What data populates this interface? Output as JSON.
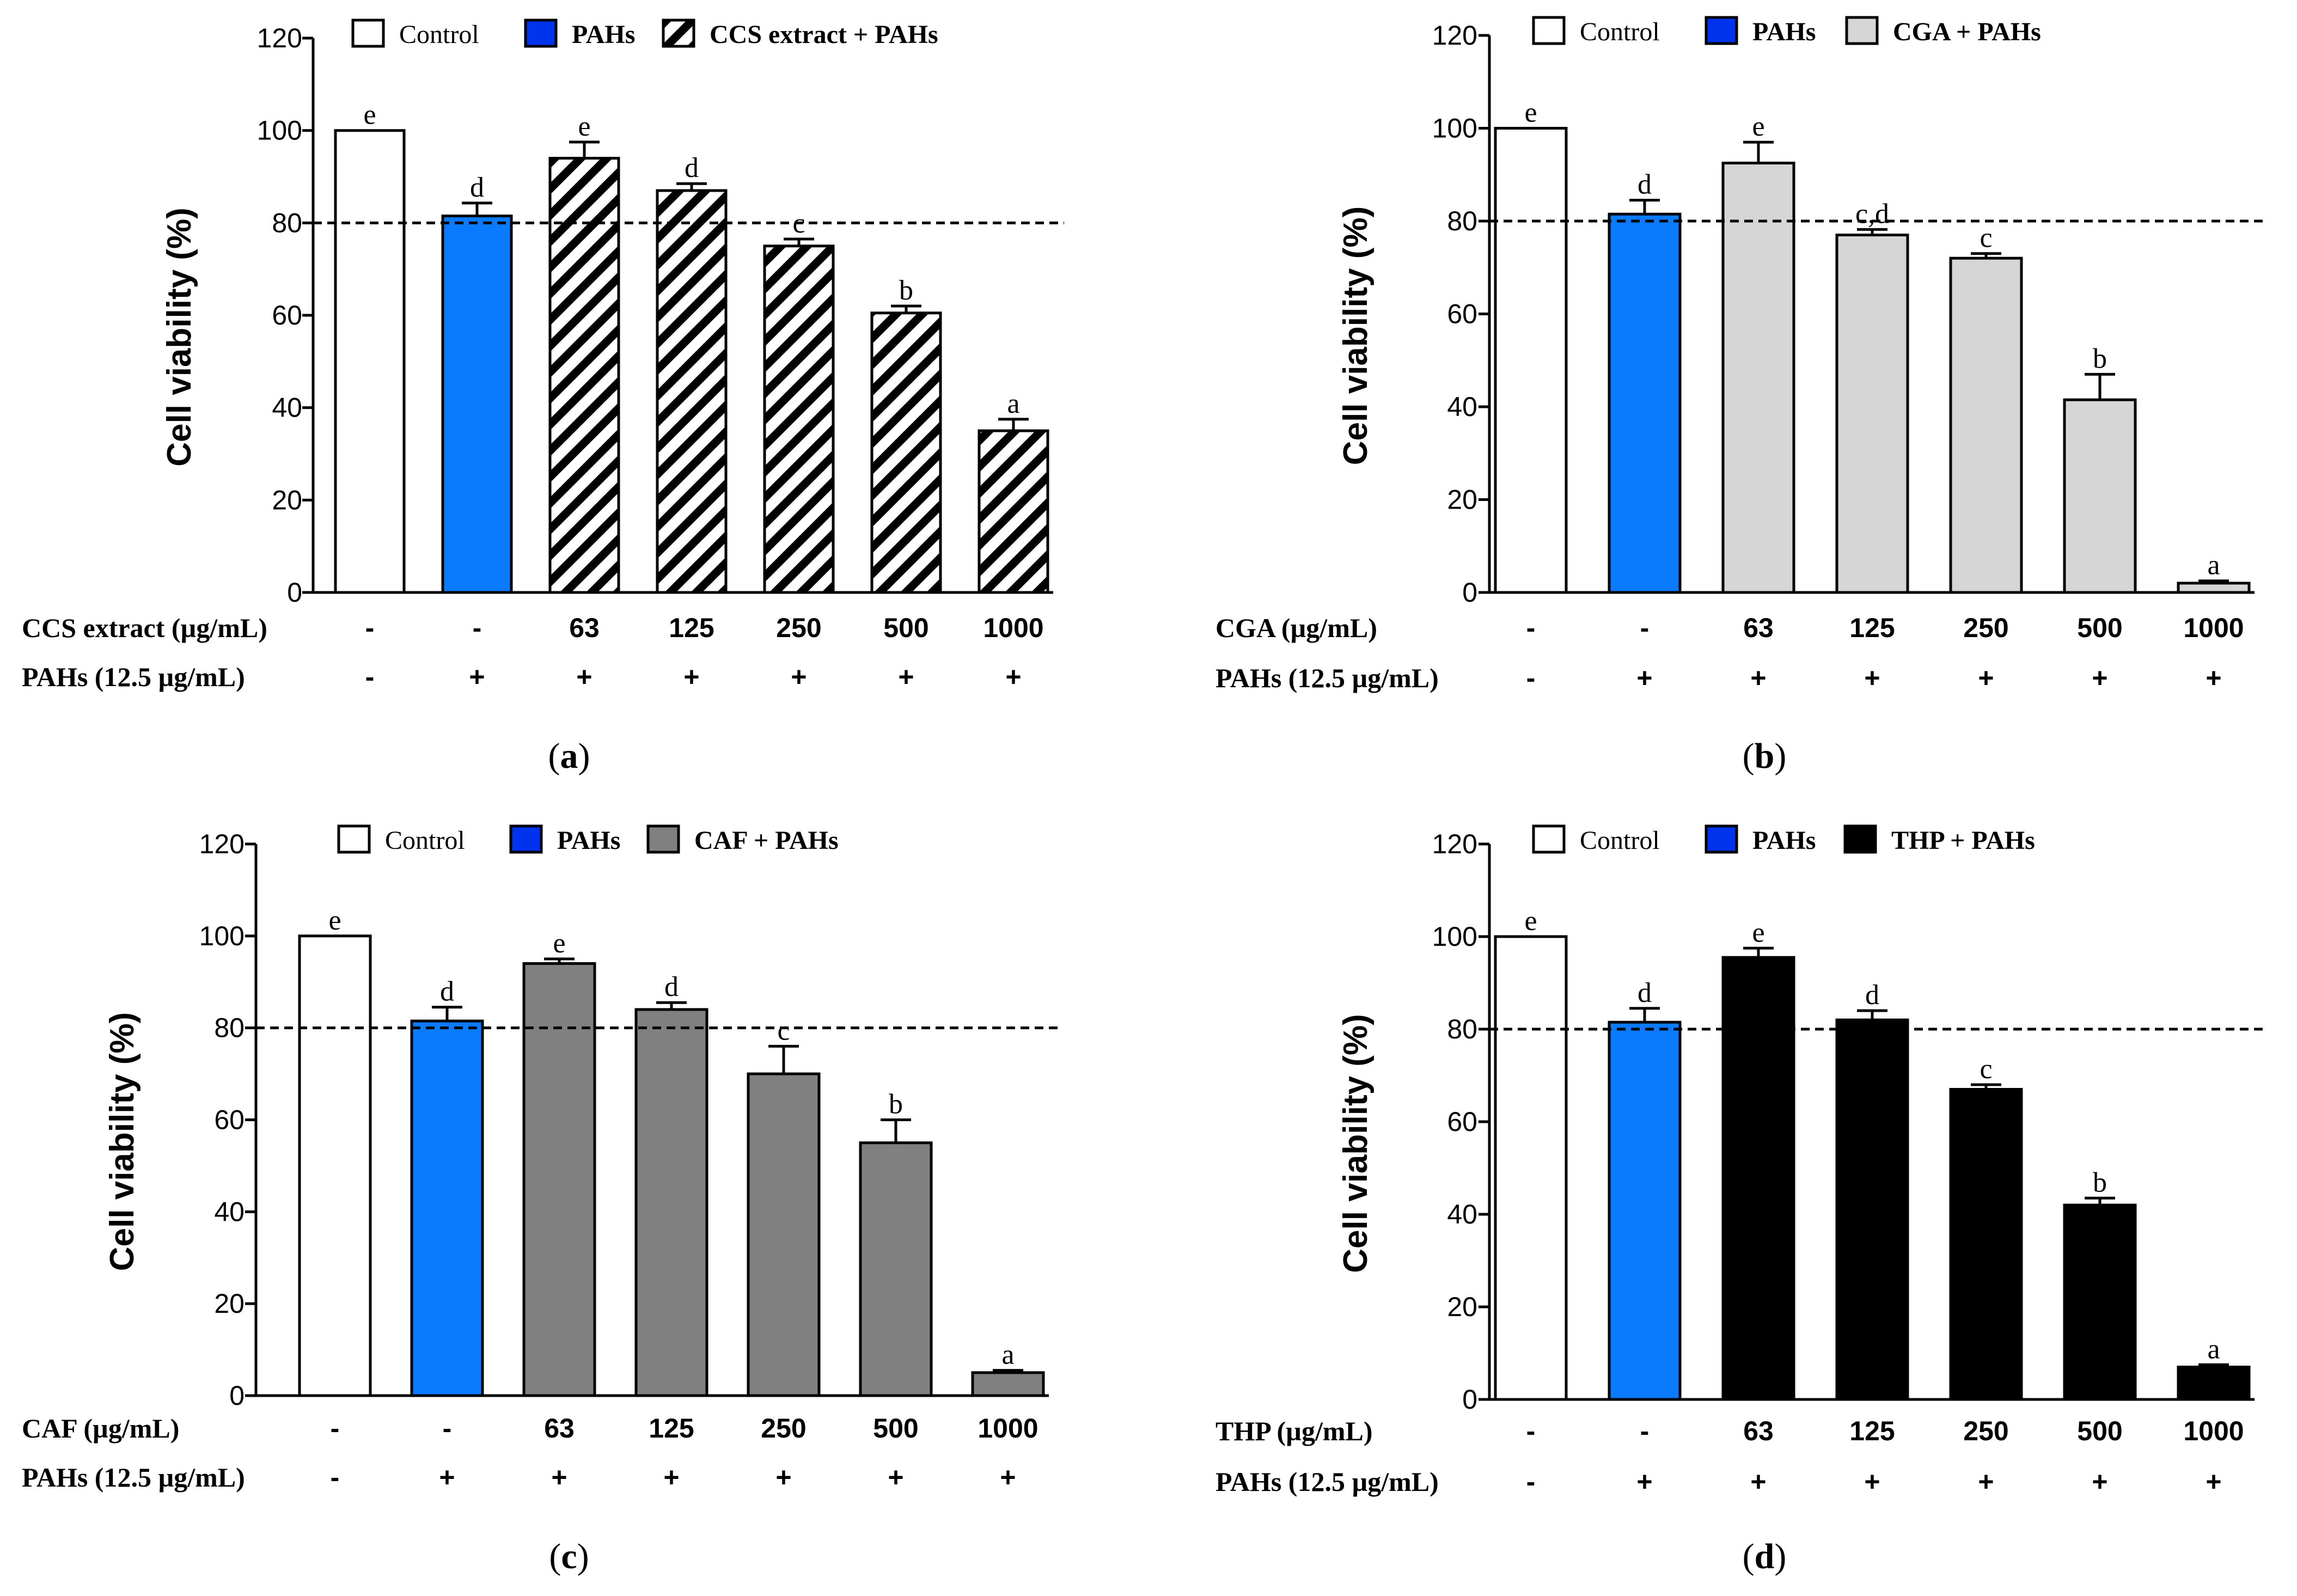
{
  "colors": {
    "control": "#ffffff",
    "pahs_blue": "#0a7bff",
    "legend_pahs": "#0033ee",
    "gray_light": "#d6d6d6",
    "gray_dark": "#808080",
    "black": "#000000"
  },
  "chart_data": [
    {
      "panel": "(a)",
      "caption_letter": "a",
      "type": "bar",
      "fill_style": "hatch",
      "ylabel": "Cell viability (%)",
      "ylim": [
        0,
        120
      ],
      "yticks": [
        "0",
        "20",
        "40",
        "60",
        "80",
        "100",
        "120"
      ],
      "reference_line": 80,
      "legend": [
        "Control",
        "PAHs",
        "CCS extract + PAHs"
      ],
      "row1_label": "CCS extract (µg/mL)",
      "row2_label": "PAHs (12.5 µg/mL)",
      "row1_values": [
        "-",
        "-",
        "63",
        "125",
        "250",
        "500",
        "1000"
      ],
      "row2_values": [
        "-",
        "+",
        "+",
        "+",
        "+",
        "+",
        "+"
      ],
      "values": [
        100,
        81.5,
        94,
        87,
        75,
        60.5,
        35
      ],
      "errors": [
        0,
        2.8,
        3.5,
        1.5,
        1.5,
        1.5,
        2.5
      ],
      "letters": [
        "e",
        "d",
        "e",
        "d",
        "c",
        "b",
        "a"
      ]
    },
    {
      "panel": "(b)",
      "caption_letter": "b",
      "type": "bar",
      "fill_style": "#d6d6d6",
      "ylabel": "Cell viability (%)",
      "ylim": [
        0,
        120
      ],
      "yticks": [
        "0",
        "20",
        "40",
        "60",
        "80",
        "100",
        "120"
      ],
      "reference_line": 80,
      "legend": [
        "Control",
        "PAHs",
        "CGA + PAHs"
      ],
      "row1_label": "CGA (µg/mL)",
      "row2_label": "PAHs (12.5 µg/mL)",
      "row1_values": [
        "-",
        "-",
        "63",
        "125",
        "250",
        "500",
        "1000"
      ],
      "row2_values": [
        "-",
        "+",
        "+",
        "+",
        "+",
        "+",
        "+"
      ],
      "values": [
        100,
        81.5,
        92.5,
        77,
        72,
        41.5,
        2
      ],
      "errors": [
        0,
        3,
        4.5,
        1.2,
        1,
        5.5,
        0.5
      ],
      "letters": [
        "e",
        "d",
        "e",
        "c,d",
        "c",
        "b",
        "a"
      ]
    },
    {
      "panel": "(c)",
      "caption_letter": "c",
      "type": "bar",
      "fill_style": "#808080",
      "ylabel": "Cell viability (%)",
      "ylim": [
        0,
        120
      ],
      "yticks": [
        "0",
        "20",
        "40",
        "60",
        "80",
        "100",
        "120"
      ],
      "reference_line": 80,
      "legend": [
        "Control",
        "PAHs",
        "CAF + PAHs"
      ],
      "row1_label": "CAF (µg/mL)",
      "row2_label": "PAHs (12.5 µg/mL)",
      "row1_values": [
        "-",
        "-",
        "63",
        "125",
        "250",
        "500",
        "1000"
      ],
      "row2_values": [
        "-",
        "+",
        "+",
        "+",
        "+",
        "+",
        "+"
      ],
      "values": [
        100,
        81.5,
        94,
        84,
        70,
        55,
        5
      ],
      "errors": [
        0,
        3,
        1,
        1.5,
        6,
        5,
        0.5
      ],
      "letters": [
        "e",
        "d",
        "e",
        "d",
        "c",
        "b",
        "a"
      ]
    },
    {
      "panel": "(d)",
      "caption_letter": "d",
      "type": "bar",
      "fill_style": "#000000",
      "ylabel": "Cell viability (%)",
      "ylim": [
        0,
        120
      ],
      "yticks": [
        "0",
        "20",
        "40",
        "60",
        "80",
        "100",
        "120"
      ],
      "reference_line": 80,
      "legend": [
        "Control",
        "PAHs",
        "THP + PAHs"
      ],
      "row1_label": "THP (µg/mL)",
      "row2_label": "PAHs (12.5 µg/mL)",
      "row1_values": [
        "-",
        "-",
        "63",
        "125",
        "250",
        "500",
        "1000"
      ],
      "row2_values": [
        "-",
        "+",
        "+",
        "+",
        "+",
        "+",
        "+"
      ],
      "values": [
        100,
        81.5,
        95.5,
        82,
        67,
        42,
        7
      ],
      "errors": [
        0,
        3,
        2,
        2,
        1,
        1.5,
        0.5
      ],
      "letters": [
        "e",
        "d",
        "e",
        "d",
        "c",
        "b",
        "a"
      ]
    }
  ]
}
